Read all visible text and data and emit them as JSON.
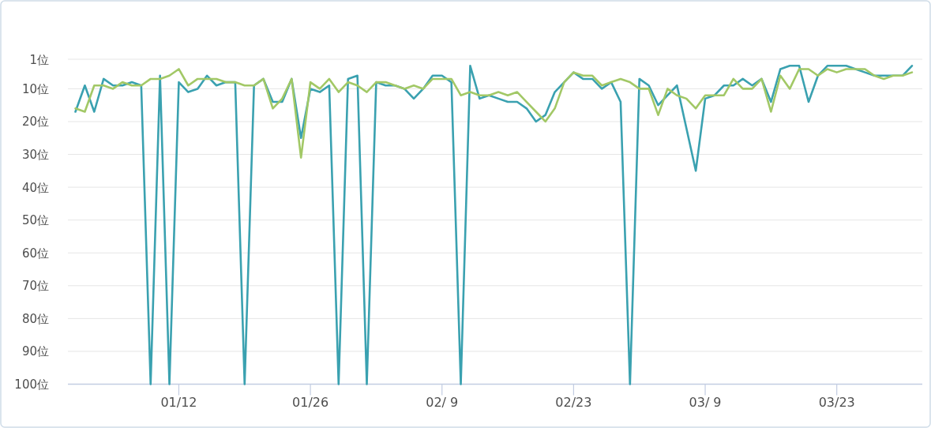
{
  "chart_data": {
    "type": "line",
    "categories": [
      null,
      null,
      null,
      null,
      null,
      null,
      null,
      null,
      null,
      null,
      null,
      "01/12",
      null,
      null,
      null,
      null,
      null,
      null,
      null,
      null,
      null,
      null,
      null,
      null,
      null,
      "01/26",
      null,
      null,
      null,
      null,
      null,
      null,
      null,
      null,
      null,
      null,
      null,
      null,
      null,
      "02/ 9",
      null,
      null,
      null,
      null,
      null,
      null,
      null,
      null,
      null,
      null,
      null,
      null,
      null,
      "02/23",
      null,
      null,
      null,
      null,
      null,
      null,
      null,
      null,
      null,
      null,
      null,
      null,
      null,
      "03/ 9",
      null,
      null,
      null,
      null,
      null,
      null,
      null,
      null,
      null,
      null,
      null,
      null,
      null,
      "03/23",
      null,
      null,
      null,
      null,
      null,
      null,
      null,
      null
    ],
    "series": [
      {
        "color": "#3aa1b0",
        "values": [
          17,
          9,
          17,
          7,
          9,
          9,
          8,
          9,
          100,
          6,
          100,
          8,
          11,
          10,
          6,
          9,
          8,
          8,
          100,
          9,
          7,
          14,
          14,
          7,
          25,
          10,
          11,
          9,
          100,
          7,
          6,
          100,
          8,
          9,
          9,
          10,
          13,
          10,
          6,
          6,
          8,
          100,
          3,
          13,
          12,
          13,
          14,
          14,
          16,
          20,
          18,
          11,
          8,
          5,
          7,
          7,
          10,
          8,
          14,
          100,
          7,
          9,
          15,
          12,
          9,
          22,
          35,
          13,
          12,
          9,
          9,
          7,
          9,
          7,
          14,
          4,
          3,
          3,
          14,
          6,
          3,
          3,
          3,
          4,
          5,
          6,
          6,
          6,
          6,
          3
        ]
      },
      {
        "color": "#a2c866",
        "values": [
          16,
          17,
          9,
          9,
          10,
          8,
          9,
          9,
          7,
          7,
          6,
          4,
          9,
          7,
          7,
          7,
          8,
          8,
          9,
          9,
          7,
          16,
          13,
          7,
          31,
          8,
          10,
          7,
          11,
          8,
          9,
          11,
          8,
          8,
          9,
          10,
          9,
          10,
          7,
          7,
          7,
          12,
          11,
          12,
          12,
          11,
          12,
          11,
          14,
          17,
          20,
          16,
          8,
          5,
          6,
          6,
          9,
          8,
          7,
          8,
          10,
          10,
          18,
          10,
          12,
          13,
          16,
          12,
          12,
          12,
          7,
          10,
          10,
          7,
          17,
          6,
          10,
          4,
          4,
          6,
          4,
          5,
          4,
          4,
          4,
          6,
          7,
          6,
          6,
          5
        ]
      }
    ],
    "ylim": [
      100,
      1
    ],
    "yticks": [
      {
        "value": 1,
        "label": "1位"
      },
      {
        "value": 10,
        "label": "10位"
      },
      {
        "value": 20,
        "label": "20位"
      },
      {
        "value": 30,
        "label": "30位"
      },
      {
        "value": 40,
        "label": "40位"
      },
      {
        "value": 50,
        "label": "50位"
      },
      {
        "value": 60,
        "label": "60位"
      },
      {
        "value": 70,
        "label": "70位"
      },
      {
        "value": 80,
        "label": "80位"
      },
      {
        "value": 90,
        "label": "90位"
      },
      {
        "value": 100,
        "label": "100位"
      }
    ],
    "grid": "y"
  }
}
